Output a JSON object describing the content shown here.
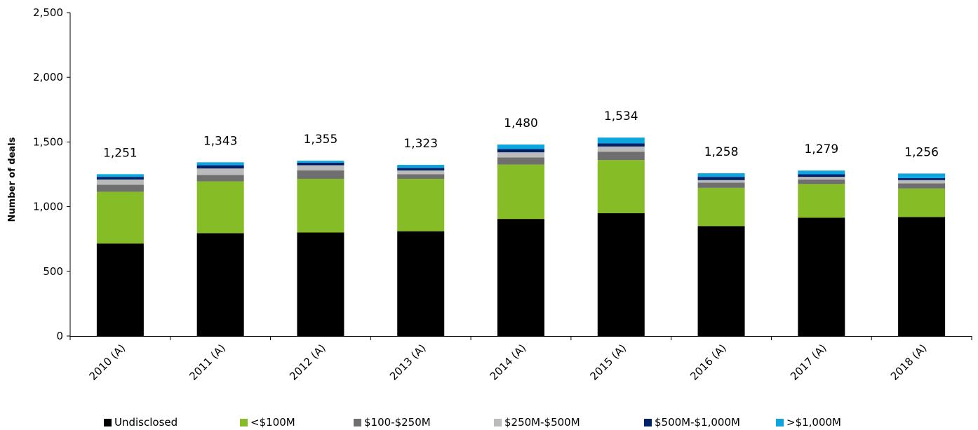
{
  "chart_data": {
    "type": "bar",
    "stacked": true,
    "ylabel": "Number of deals",
    "xlabel": "",
    "ylim": [
      0,
      2500
    ],
    "yticks": [
      0,
      500,
      1000,
      1500,
      2000,
      2500
    ],
    "ytick_labels": [
      "0",
      "500",
      "1,000",
      "1,500",
      "2,000",
      "2,500"
    ],
    "categories": [
      "2010 (A)",
      "2011 (A)",
      "2012 (A)",
      "2013 (A)",
      "2014 (A)",
      "2015 (A)",
      "2016 (A)",
      "2017 (A)",
      "2018 (A)"
    ],
    "totals": [
      1251,
      1343,
      1355,
      1323,
      1480,
      1534,
      1258,
      1279,
      1256
    ],
    "total_labels": [
      "1,251",
      "1,343",
      "1,355",
      "1,323",
      "1,480",
      "1,534",
      "1,258",
      "1,279",
      "1,256"
    ],
    "series": [
      {
        "name": "Undisclosed",
        "color": "#000000",
        "values": [
          715,
          795,
          800,
          810,
          905,
          950,
          850,
          915,
          920
        ]
      },
      {
        "name": "<$100M",
        "color": "#86bc25",
        "values": [
          400,
          400,
          415,
          405,
          420,
          410,
          295,
          260,
          220
        ]
      },
      {
        "name": "$100-$250M",
        "color": "#6f6f6f",
        "values": [
          55,
          50,
          65,
          35,
          55,
          65,
          40,
          35,
          40
        ]
      },
      {
        "name": "$250M-$500M",
        "color": "#bbbbbb",
        "values": [
          40,
          50,
          40,
          30,
          40,
          40,
          20,
          20,
          25
        ]
      },
      {
        "name": "$500M-$1,000M",
        "color": "#012169",
        "values": [
          20,
          25,
          20,
          20,
          25,
          24,
          25,
          20,
          16
        ]
      },
      {
        "name": ">$1,000M",
        "color": "#0da5de",
        "values": [
          21,
          23,
          15,
          23,
          35,
          45,
          28,
          29,
          35
        ]
      }
    ],
    "grid": false,
    "legend_position": "bottom"
  }
}
